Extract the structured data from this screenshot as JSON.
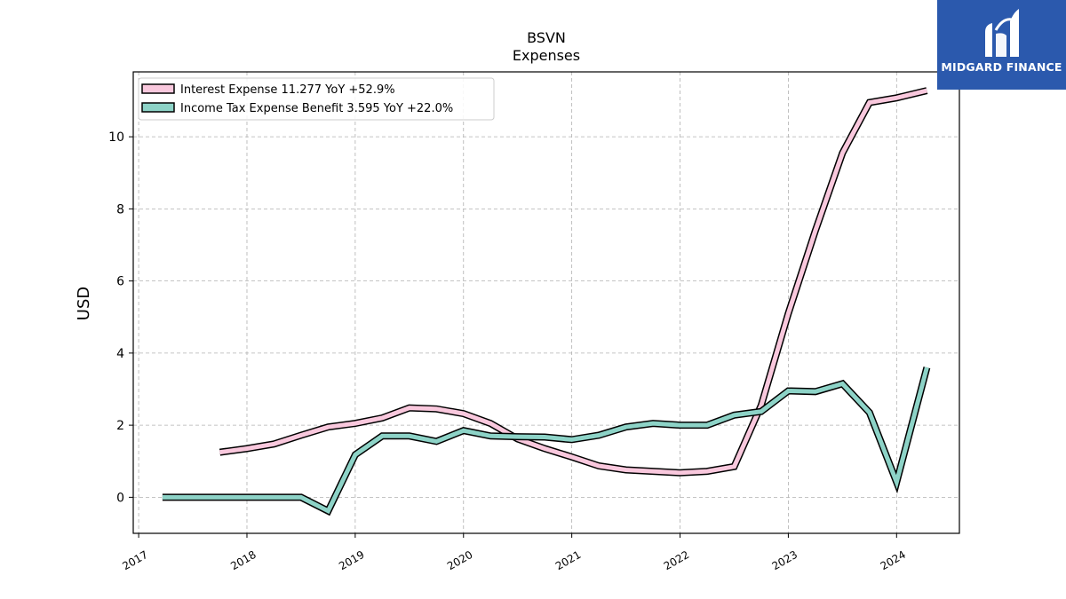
{
  "chart_data": {
    "type": "line",
    "title": "BSVN",
    "subtitle": "Expenses",
    "ylabel": "USD",
    "xlabel": "",
    "ylim": [
      -1.0,
      11.8
    ],
    "xlim": [
      2016.95,
      2024.58
    ],
    "yticks": [
      0,
      2,
      4,
      6,
      8,
      10
    ],
    "xticks": [
      "2017",
      "2018",
      "2019",
      "2020",
      "2021",
      "2022",
      "2023",
      "2024"
    ],
    "grid": true,
    "legend_position": "top-left",
    "series": [
      {
        "name": "Interest Expense",
        "legend_label": "Interest Expense  11.277 YoY +52.9%",
        "color": "#f9c8dd",
        "x": [
          2017.75,
          2018.0,
          2018.25,
          2018.5,
          2018.75,
          2019.0,
          2019.25,
          2019.5,
          2019.75,
          2020.0,
          2020.25,
          2020.5,
          2020.75,
          2021.0,
          2021.25,
          2021.5,
          2021.75,
          2022.0,
          2022.25,
          2022.5,
          2022.75,
          2023.0,
          2023.25,
          2023.5,
          2023.75,
          2024.0,
          2024.28
        ],
        "values": [
          1.25,
          1.35,
          1.48,
          1.72,
          1.95,
          2.05,
          2.2,
          2.48,
          2.45,
          2.32,
          2.05,
          1.62,
          1.35,
          1.12,
          0.87,
          0.76,
          0.72,
          0.68,
          0.72,
          0.85,
          2.55,
          5.1,
          7.4,
          9.55,
          10.95,
          11.08,
          11.28
        ]
      },
      {
        "name": "Income Tax Expense Benefit",
        "legend_label": "Income Tax Expense Benefit  3.595 YoY +22.0%",
        "color": "#8dd3c7",
        "x": [
          2017.22,
          2017.5,
          2017.75,
          2018.0,
          2018.25,
          2018.5,
          2018.75,
          2019.0,
          2019.25,
          2019.5,
          2019.75,
          2020.0,
          2020.25,
          2020.5,
          2020.75,
          2021.0,
          2021.25,
          2021.5,
          2021.75,
          2022.0,
          2022.25,
          2022.5,
          2022.75,
          2023.0,
          2023.25,
          2023.5,
          2023.75,
          2024.0,
          2024.28
        ],
        "values": [
          0.0,
          0.0,
          0.0,
          0.0,
          0.0,
          0.0,
          -0.38,
          1.18,
          1.7,
          1.7,
          1.55,
          1.85,
          1.7,
          1.68,
          1.67,
          1.6,
          1.72,
          1.95,
          2.05,
          2.0,
          2.0,
          2.28,
          2.38,
          2.95,
          2.93,
          3.15,
          2.35,
          0.42,
          3.6
        ]
      }
    ]
  },
  "logo": {
    "text": "MIDGARD FINANCE",
    "background": "#2b59ad"
  }
}
